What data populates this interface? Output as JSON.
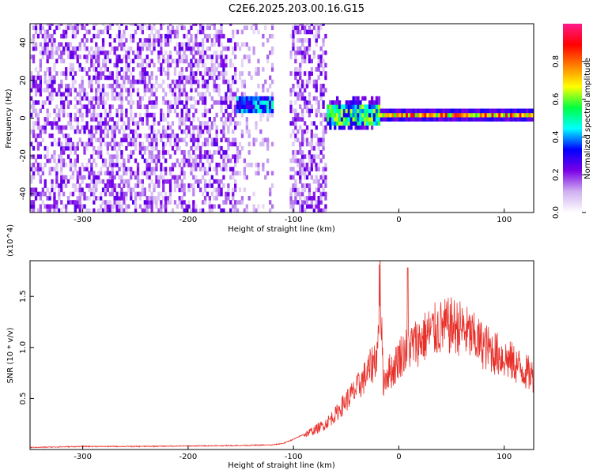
{
  "figure_title": "C2E6.2025.203.00.16.G15",
  "chart_data": [
    {
      "type": "heatmap",
      "title": "C2E6.2025.203.00.16.G15",
      "xlabel": "Height of straight line (km)",
      "ylabel": "Frequency (Hz)",
      "xlim": [
        -350,
        128
      ],
      "ylim": [
        -50,
        50
      ],
      "x_ticks": [
        -300,
        -200,
        -100,
        0,
        100
      ],
      "y_ticks": [
        -40,
        -20,
        0,
        20,
        40
      ],
      "colorbar": {
        "label": "Normalized spectral amplitude",
        "range": [
          0,
          1
        ],
        "ticks": [
          "0.0",
          "0.2",
          "0.4",
          "0.6",
          "0.8"
        ],
        "tick_values": [
          0.0,
          0.2,
          0.4,
          0.6,
          0.8
        ],
        "colormap": [
          "#ffffff",
          "#cfb0f0",
          "#7a00e6",
          "#0000ff",
          "#00ffff",
          "#00ff40",
          "#ffff00",
          "#ff7f00",
          "#ff0000",
          "#ff1a8c"
        ]
      },
      "regions": [
        {
          "x_range": [
            -350,
            -155
          ],
          "pattern": "broadband noise",
          "amplitude": 0.15
        },
        {
          "x_range": [
            -155,
            -120
          ],
          "pattern": "weak noise with band near 5 Hz",
          "amplitude": 0.35
        },
        {
          "x_range": [
            -105,
            -70
          ],
          "pattern": "broadband noise",
          "amplitude": 0.15
        },
        {
          "x_range": [
            -70,
            -20
          ],
          "pattern": "band near 0 Hz, spread",
          "amplitude": 0.5
        },
        {
          "x_range": [
            -20,
            128
          ],
          "pattern": "narrow band at 0 Hz",
          "amplitude": 0.7
        }
      ],
      "grid": false
    },
    {
      "type": "line",
      "xlabel": "Height of straight line (km)",
      "ylabel": "SNR (10 * v/v)",
      "y_multiplier": "(x10^4)",
      "xlim": [
        -350,
        128
      ],
      "ylim": [
        0,
        1.85
      ],
      "x_ticks": [
        -300,
        -200,
        -100,
        0,
        100
      ],
      "y_ticks": [
        "0.5",
        "1.0",
        "1.5"
      ],
      "y_tick_values": [
        0.5,
        1.0,
        1.5
      ],
      "series": [
        {
          "color": "#e8302a",
          "x": [
            -350,
            -300,
            -250,
            -200,
            -150,
            -120,
            -110,
            -100,
            -90,
            -80,
            -70,
            -60,
            -50,
            -40,
            -30,
            -25,
            -20,
            -18,
            -15,
            -10,
            -5,
            0,
            5,
            10,
            20,
            30,
            40,
            50,
            60,
            70,
            80,
            90,
            100,
            110,
            120,
            128
          ],
          "y": [
            0.02,
            0.03,
            0.03,
            0.035,
            0.04,
            0.045,
            0.06,
            0.1,
            0.15,
            0.2,
            0.26,
            0.36,
            0.5,
            0.62,
            0.78,
            0.88,
            1.0,
            1.85,
            0.7,
            0.8,
            0.82,
            0.95,
            1.0,
            1.05,
            1.12,
            1.2,
            1.25,
            1.27,
            1.24,
            1.15,
            1.07,
            1.0,
            0.94,
            0.88,
            0.8,
            0.75
          ]
        }
      ],
      "grid": false
    }
  ]
}
